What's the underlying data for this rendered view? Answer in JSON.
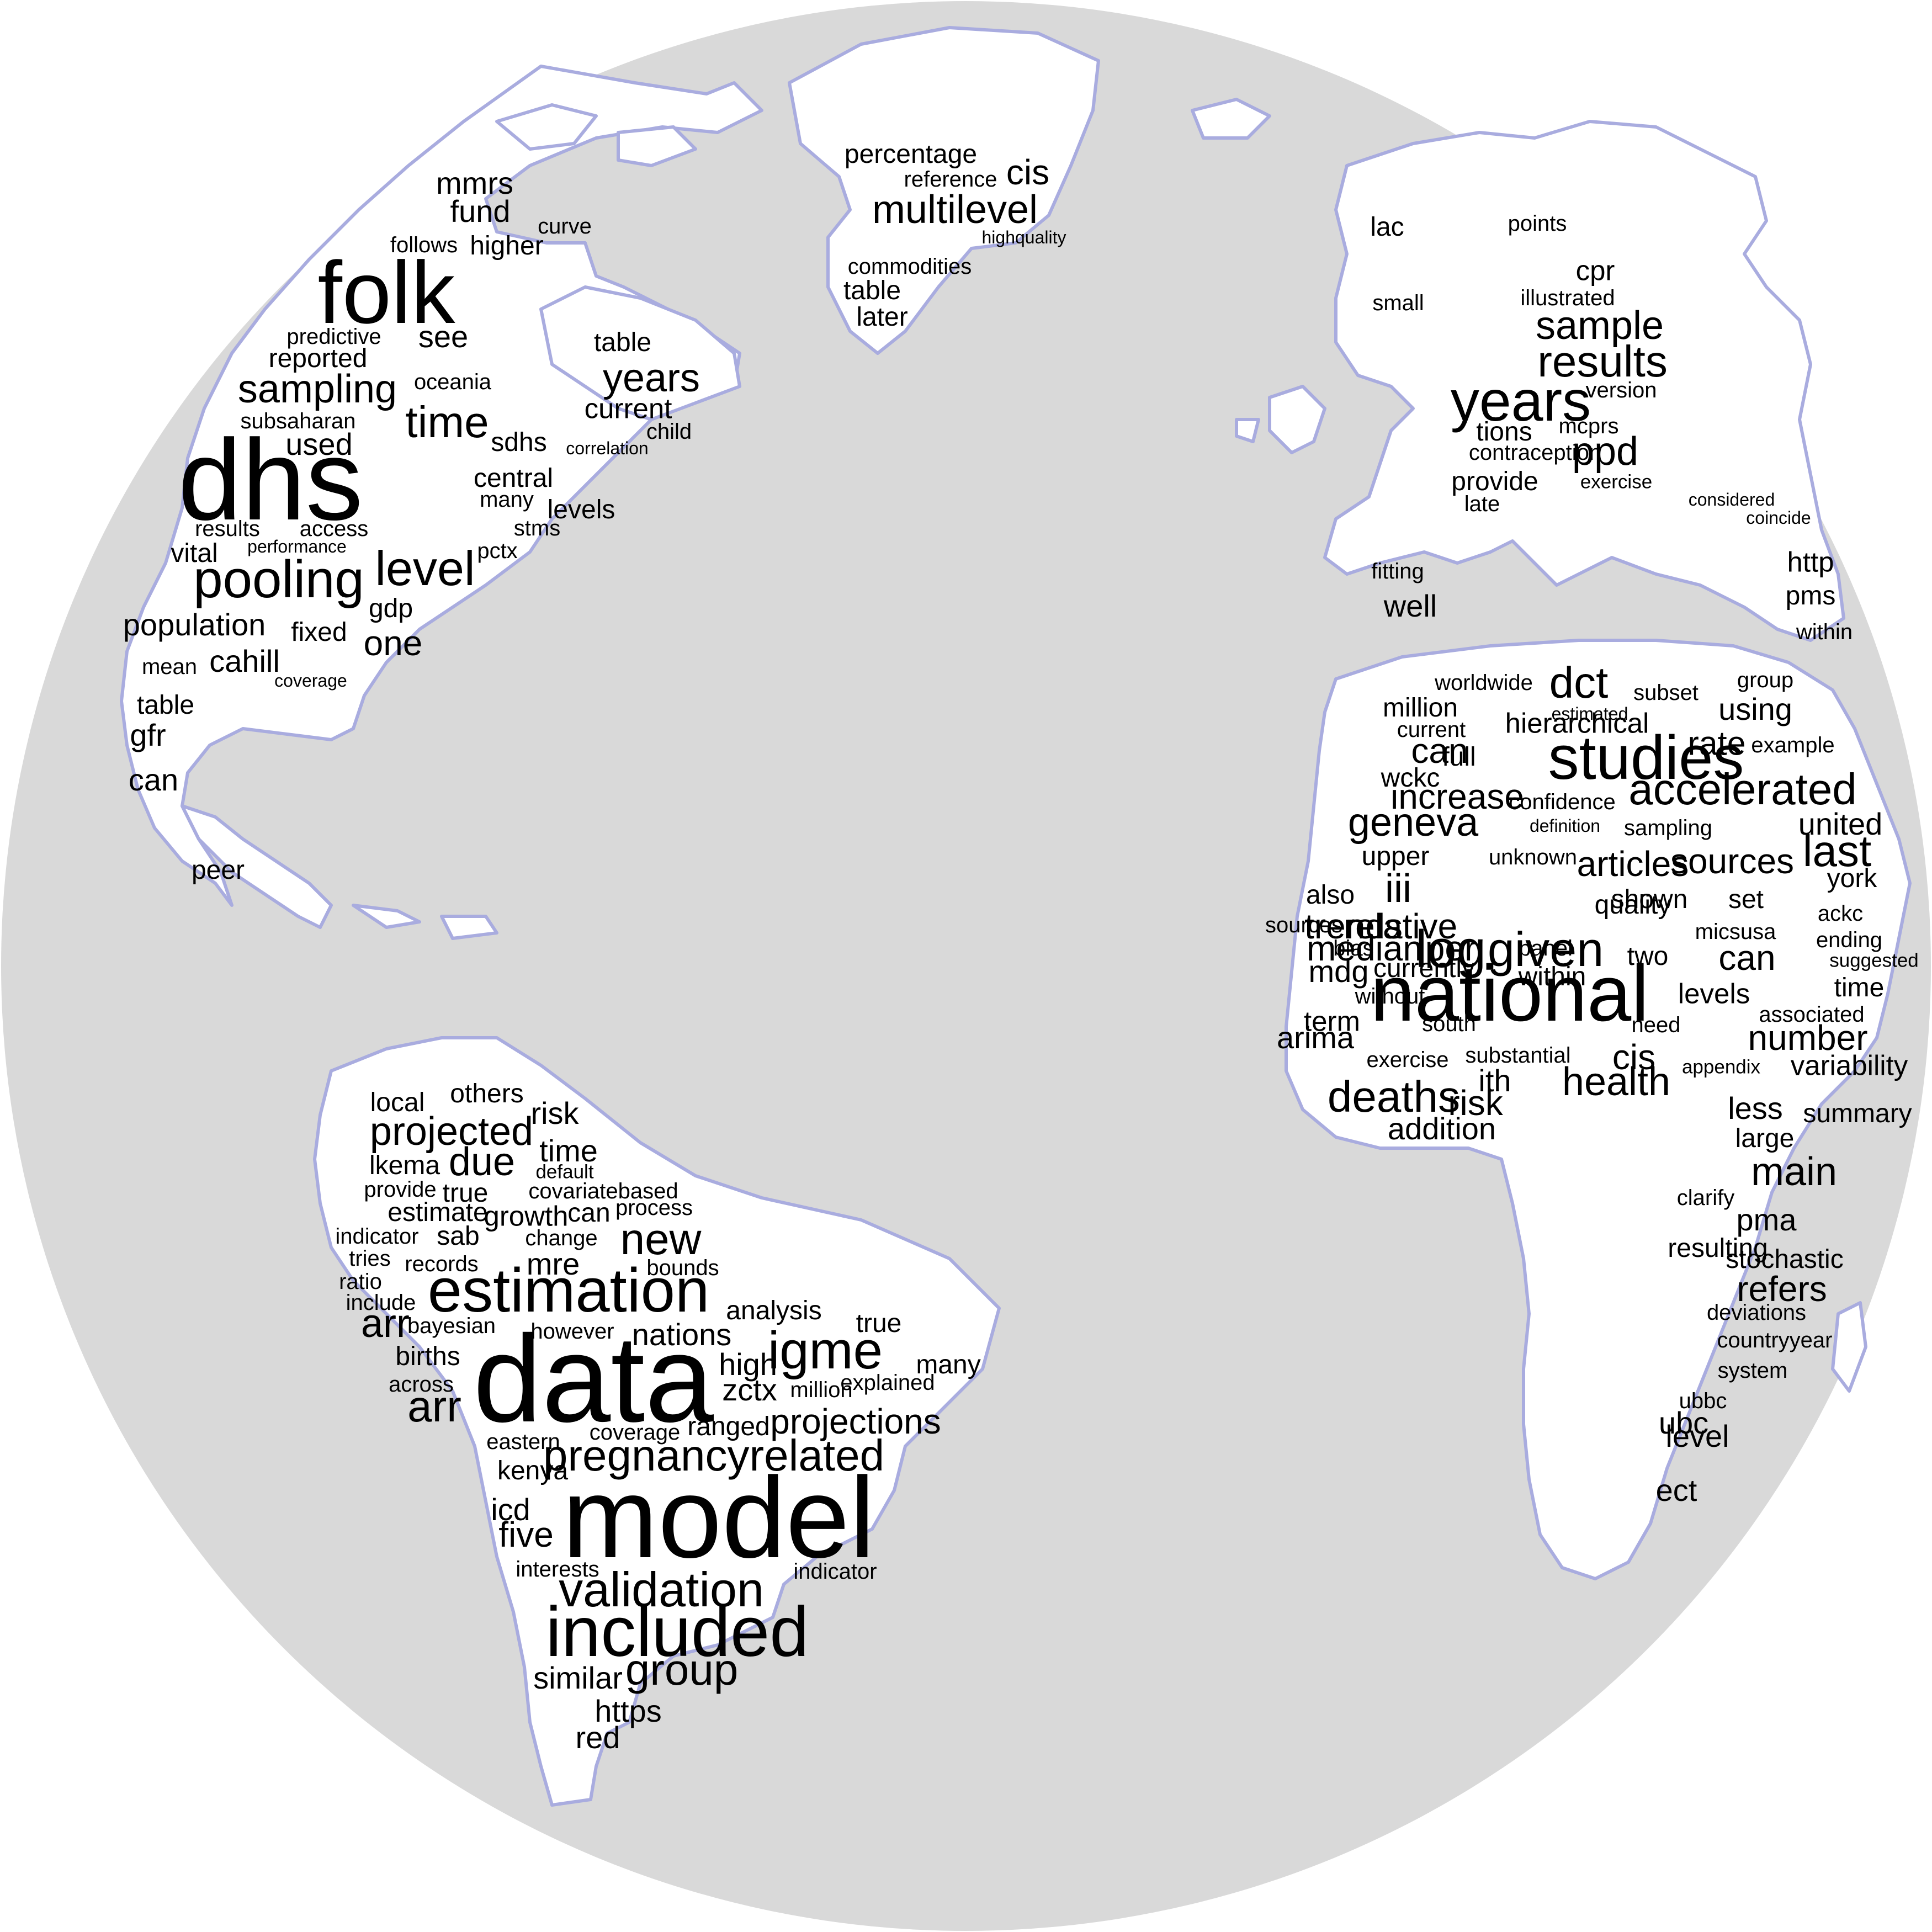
{
  "colors": {
    "ocean": "#d9d9d9",
    "land": "#ffffff",
    "coast": "#a9acdf",
    "text": "#000000"
  },
  "regions": [
    {
      "name": "north-america",
      "words": [
        {
          "text": "folk",
          "weight": 10
        },
        {
          "text": "dhs",
          "weight": 13
        },
        {
          "text": "pooling",
          "weight": 6
        },
        {
          "text": "sampling",
          "weight": 4.5
        },
        {
          "text": "level",
          "weight": 5.5
        },
        {
          "text": "time",
          "weight": 5
        },
        {
          "text": "years",
          "weight": 4.5
        },
        {
          "text": "fund",
          "weight": 3.5
        },
        {
          "text": "mmrs",
          "weight": 3.5
        },
        {
          "text": "higher",
          "weight": 3
        },
        {
          "text": "follows",
          "weight": 2.5
        },
        {
          "text": "curve",
          "weight": 2.5
        },
        {
          "text": "see",
          "weight": 3.5
        },
        {
          "text": "predictive",
          "weight": 2.5
        },
        {
          "text": "reported",
          "weight": 3
        },
        {
          "text": "oceania",
          "weight": 2.5
        },
        {
          "text": "table",
          "weight": 3
        },
        {
          "text": "current",
          "weight": 3.2
        },
        {
          "text": "subsaharan",
          "weight": 2.5
        },
        {
          "text": "used",
          "weight": 3.5
        },
        {
          "text": "sdhs",
          "weight": 3
        },
        {
          "text": "correlation",
          "weight": 2
        },
        {
          "text": "child",
          "weight": 2.5
        },
        {
          "text": "central",
          "weight": 3
        },
        {
          "text": "many",
          "weight": 2.5
        },
        {
          "text": "levels",
          "weight": 3
        },
        {
          "text": "results",
          "weight": 2.5
        },
        {
          "text": "access",
          "weight": 2.5
        },
        {
          "text": "stms",
          "weight": 2.5
        },
        {
          "text": "vital",
          "weight": 3
        },
        {
          "text": "performance",
          "weight": 2
        },
        {
          "text": "pctx",
          "weight": 2.5
        },
        {
          "text": "gdp",
          "weight": 3
        },
        {
          "text": "one",
          "weight": 4
        },
        {
          "text": "population",
          "weight": 3.5
        },
        {
          "text": "fixed",
          "weight": 3
        },
        {
          "text": "mean",
          "weight": 2.5
        },
        {
          "text": "cahill",
          "weight": 3.5
        },
        {
          "text": "coverage",
          "weight": 2
        },
        {
          "text": "table",
          "weight": 3
        },
        {
          "text": "gfr",
          "weight": 3.5
        },
        {
          "text": "can",
          "weight": 3.5
        },
        {
          "text": "peer",
          "weight": 3
        }
      ]
    },
    {
      "name": "greenland",
      "words": [
        {
          "text": "percentage",
          "weight": 3
        },
        {
          "text": "cis",
          "weight": 4
        },
        {
          "text": "reference",
          "weight": 2.5
        },
        {
          "text": "multilevel",
          "weight": 4.5
        },
        {
          "text": "highquality",
          "weight": 2
        },
        {
          "text": "commodities",
          "weight": 2.5
        },
        {
          "text": "table",
          "weight": 3
        },
        {
          "text": "later",
          "weight": 3
        }
      ]
    },
    {
      "name": "europe",
      "words": [
        {
          "text": "lac",
          "weight": 3
        },
        {
          "text": "points",
          "weight": 2.5
        },
        {
          "text": "cpr",
          "weight": 3.2
        },
        {
          "text": "small",
          "weight": 2.5
        },
        {
          "text": "illustrated",
          "weight": 2.5
        },
        {
          "text": "sample",
          "weight": 4.5
        },
        {
          "text": "results",
          "weight": 5
        },
        {
          "text": "years",
          "weight": 6.5
        },
        {
          "text": "version",
          "weight": 2.5
        },
        {
          "text": "tions",
          "weight": 3
        },
        {
          "text": "mcprs",
          "weight": 2.5
        },
        {
          "text": "ppd",
          "weight": 4.5
        },
        {
          "text": "contraception",
          "weight": 2.5
        },
        {
          "text": "provide",
          "weight": 3
        },
        {
          "text": "exercise",
          "weight": 2.2
        },
        {
          "text": "late",
          "weight": 2.5
        },
        {
          "text": "considered",
          "weight": 2
        },
        {
          "text": "coincide",
          "weight": 2
        },
        {
          "text": "http",
          "weight": 3.2
        },
        {
          "text": "fitting",
          "weight": 2.5
        },
        {
          "text": "pms",
          "weight": 3
        },
        {
          "text": "well",
          "weight": 3.5
        },
        {
          "text": "within",
          "weight": 2.5
        }
      ]
    },
    {
      "name": "africa",
      "words": [
        {
          "text": "worldwide",
          "weight": 2.5
        },
        {
          "text": "dct",
          "weight": 5
        },
        {
          "text": "subset",
          "weight": 2.5
        },
        {
          "text": "group",
          "weight": 2.5
        },
        {
          "text": "million",
          "weight": 3
        },
        {
          "text": "estimated",
          "weight": 2
        },
        {
          "text": "using",
          "weight": 3.5
        },
        {
          "text": "current",
          "weight": 2.5
        },
        {
          "text": "hierarchical",
          "weight": 3.2
        },
        {
          "text": "can",
          "weight": 4
        },
        {
          "text": "full",
          "weight": 3
        },
        {
          "text": "studies",
          "weight": 7
        },
        {
          "text": "rate",
          "weight": 3.8
        },
        {
          "text": "example",
          "weight": 2.5
        },
        {
          "text": "wckc",
          "weight": 3
        },
        {
          "text": "accelerated",
          "weight": 5
        },
        {
          "text": "increase",
          "weight": 4
        },
        {
          "text": "confidence",
          "weight": 2.5
        },
        {
          "text": "geneva",
          "weight": 4.5
        },
        {
          "text": "definition",
          "weight": 2
        },
        {
          "text": "sampling",
          "weight": 2.5
        },
        {
          "text": "united",
          "weight": 3.5
        },
        {
          "text": "upper",
          "weight": 3
        },
        {
          "text": "unknown",
          "weight": 2.5
        },
        {
          "text": "articles",
          "weight": 4
        },
        {
          "text": "sources",
          "weight": 4
        },
        {
          "text": "last",
          "weight": 5
        },
        {
          "text": "york",
          "weight": 3
        },
        {
          "text": "also",
          "weight": 3
        },
        {
          "text": "iii",
          "weight": 4.5
        },
        {
          "text": "sources",
          "weight": 2.5
        },
        {
          "text": "trends",
          "weight": 4
        },
        {
          "text": "relative",
          "weight": 4
        },
        {
          "text": "quality",
          "weight": 3
        },
        {
          "text": "shown",
          "weight": 3
        },
        {
          "text": "set",
          "weight": 3
        },
        {
          "text": "ackc",
          "weight": 2.5
        },
        {
          "text": "bias",
          "weight": 2.5
        },
        {
          "text": "per",
          "weight": 4
        },
        {
          "text": "panel",
          "weight": 2.5
        },
        {
          "text": "micsusa",
          "weight": 2.5
        },
        {
          "text": "ending",
          "weight": 2.5
        },
        {
          "text": "median",
          "weight": 4
        },
        {
          "text": "log",
          "weight": 6
        },
        {
          "text": "given",
          "weight": 5.5
        },
        {
          "text": "two",
          "weight": 3
        },
        {
          "text": "can",
          "weight": 4
        },
        {
          "text": "suggested",
          "weight": 2.2
        },
        {
          "text": "mdg",
          "weight": 3.5
        },
        {
          "text": "currently",
          "weight": 3
        },
        {
          "text": "within",
          "weight": 3
        },
        {
          "text": "time",
          "weight": 3
        },
        {
          "text": "without",
          "weight": 2.5
        },
        {
          "text": "national",
          "weight": 9
        },
        {
          "text": "levels",
          "weight": 3.2
        },
        {
          "text": "need",
          "weight": 2.5
        },
        {
          "text": "associated",
          "weight": 2.5
        },
        {
          "text": "term",
          "weight": 3.2
        },
        {
          "text": "south",
          "weight": 2.5
        },
        {
          "text": "number",
          "weight": 4
        },
        {
          "text": "arima",
          "weight": 3.5
        },
        {
          "text": "exercise",
          "weight": 2.5
        },
        {
          "text": "substantial",
          "weight": 2.5
        },
        {
          "text": "cis",
          "weight": 4
        },
        {
          "text": "appendix",
          "weight": 2.2
        },
        {
          "text": "variability",
          "weight": 3.2
        },
        {
          "text": "ith",
          "weight": 3.5
        },
        {
          "text": "health",
          "weight": 4.5
        },
        {
          "text": "deaths",
          "weight": 5
        },
        {
          "text": "risk",
          "weight": 4
        },
        {
          "text": "less",
          "weight": 3.5
        },
        {
          "text": "summary",
          "weight": 3
        },
        {
          "text": "addition",
          "weight": 3.5
        },
        {
          "text": "large",
          "weight": 3
        },
        {
          "text": "main",
          "weight": 4.5
        },
        {
          "text": "clarify",
          "weight": 2.5
        },
        {
          "text": "pma",
          "weight": 3.5
        },
        {
          "text": "resulting",
          "weight": 3
        },
        {
          "text": "stochastic",
          "weight": 3
        },
        {
          "text": "refers",
          "weight": 4
        },
        {
          "text": "deviations",
          "weight": 2.5
        },
        {
          "text": "countryyear",
          "weight": 2.5
        },
        {
          "text": "system",
          "weight": 2.5
        },
        {
          "text": "ubbc",
          "weight": 2.5
        },
        {
          "text": "ubc",
          "weight": 3.5
        },
        {
          "text": "level",
          "weight": 3.5
        },
        {
          "text": "ect",
          "weight": 3.5
        }
      ]
    },
    {
      "name": "south-america",
      "words": [
        {
          "text": "local",
          "weight": 3
        },
        {
          "text": "others",
          "weight": 3
        },
        {
          "text": "risk",
          "weight": 3.5
        },
        {
          "text": "projected",
          "weight": 4.5
        },
        {
          "text": "time",
          "weight": 3.5
        },
        {
          "text": "lkema",
          "weight": 3
        },
        {
          "text": "due",
          "weight": 4.5
        },
        {
          "text": "default",
          "weight": 2.2
        },
        {
          "text": "provide",
          "weight": 2.5
        },
        {
          "text": "true",
          "weight": 3
        },
        {
          "text": "covariatebased",
          "weight": 2.5
        },
        {
          "text": "estimate",
          "weight": 3
        },
        {
          "text": "growth",
          "weight": 3.2
        },
        {
          "text": "can",
          "weight": 3
        },
        {
          "text": "process",
          "weight": 2.5
        },
        {
          "text": "indicator",
          "weight": 2.5
        },
        {
          "text": "sab",
          "weight": 3
        },
        {
          "text": "change",
          "weight": 2.5
        },
        {
          "text": "new",
          "weight": 5
        },
        {
          "text": "tries",
          "weight": 2.5
        },
        {
          "text": "records",
          "weight": 2.5
        },
        {
          "text": "mre",
          "weight": 3.5
        },
        {
          "text": "bounds",
          "weight": 2.5
        },
        {
          "text": "ratio",
          "weight": 2.5
        },
        {
          "text": "estimation",
          "weight": 7
        },
        {
          "text": "include",
          "weight": 2.5
        },
        {
          "text": "arr",
          "weight": 4.5
        },
        {
          "text": "bayesian",
          "weight": 2.5
        },
        {
          "text": "analysis",
          "weight": 3
        },
        {
          "text": "however",
          "weight": 2.5
        },
        {
          "text": "nations",
          "weight": 3.5
        },
        {
          "text": "true",
          "weight": 3
        },
        {
          "text": "igme",
          "weight": 6
        },
        {
          "text": "births",
          "weight": 3
        },
        {
          "text": "data",
          "weight": 14
        },
        {
          "text": "high",
          "weight": 3.5
        },
        {
          "text": "many",
          "weight": 3
        },
        {
          "text": "across",
          "weight": 2.5
        },
        {
          "text": "arr",
          "weight": 5
        },
        {
          "text": "zctx",
          "weight": 3.5
        },
        {
          "text": "million",
          "weight": 2.5
        },
        {
          "text": "explained",
          "weight": 2.5
        },
        {
          "text": "coverage",
          "weight": 2.5
        },
        {
          "text": "ranged",
          "weight": 3
        },
        {
          "text": "projections",
          "weight": 4
        },
        {
          "text": "eastern",
          "weight": 2.5
        },
        {
          "text": "kenya",
          "weight": 3
        },
        {
          "text": "pregnancyrelated",
          "weight": 5
        },
        {
          "text": "icd",
          "weight": 3.5
        },
        {
          "text": "model",
          "weight": 13
        },
        {
          "text": "five",
          "weight": 4
        },
        {
          "text": "interests",
          "weight": 2.5
        },
        {
          "text": "indicator",
          "weight": 2.5
        },
        {
          "text": "validation",
          "weight": 5.5
        },
        {
          "text": "included",
          "weight": 8
        },
        {
          "text": "similar",
          "weight": 3.5
        },
        {
          "text": "group",
          "weight": 5
        },
        {
          "text": "https",
          "weight": 3.5
        },
        {
          "text": "red",
          "weight": 3.5
        }
      ]
    }
  ]
}
